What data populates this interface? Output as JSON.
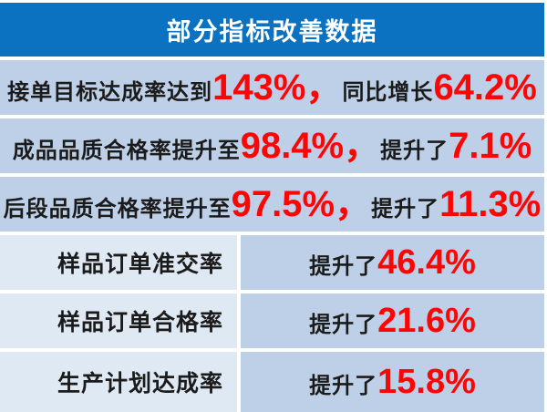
{
  "header": {
    "title": "部分指标改善数据"
  },
  "colors": {
    "banner_bg": "#0b72c1",
    "row_bg": "#bdd0e7",
    "label_cell_bg": "#dfe9f4",
    "accent_red": "#fe0505",
    "text_dark": "#1b1b1b",
    "title_text": "#ffffff",
    "gap_white": "#ffffff"
  },
  "full_rows": [
    {
      "t0": "接单目标达成率达到",
      "n0": "143%，",
      "t1": "同比增长",
      "n1": "64.2%"
    },
    {
      "t0": "成品品质合格率提升至",
      "n0": "98.4%，",
      "t1": "提升了",
      "n1": "7.1%"
    },
    {
      "t0": "后段品质合格率提升至",
      "n0": "97.5%，",
      "t1": "提升了",
      "n1": "11.3%"
    }
  ],
  "split_rows": [
    {
      "label": "样品订单准交率",
      "prefix": "提升了",
      "value": "46.4%"
    },
    {
      "label": "样品订单合格率",
      "prefix": "提升了",
      "value": "21.6%"
    },
    {
      "label": "生产计划达成率",
      "prefix": "提升了",
      "value": "15.8%"
    }
  ]
}
